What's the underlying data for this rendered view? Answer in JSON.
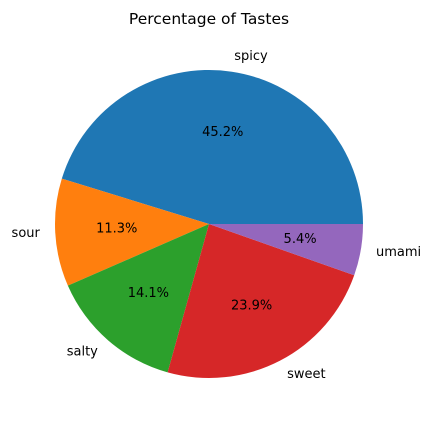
{
  "chart_data": {
    "type": "pie",
    "title": "Percentage of Tastes",
    "categories": [
      "spicy",
      "sour",
      "salty",
      "sweet",
      "umami"
    ],
    "values": [
      45.2,
      11.3,
      14.1,
      23.9,
      5.4
    ],
    "labels": [
      "45.2%",
      "11.3%",
      "14.1%",
      "23.9%",
      "5.4%"
    ],
    "colors": [
      "#1f77b4",
      "#ff7f0e",
      "#2ca02c",
      "#d62728",
      "#9467bd"
    ],
    "start_angle": 0,
    "direction": "counterclockwise",
    "legend": "none"
  }
}
